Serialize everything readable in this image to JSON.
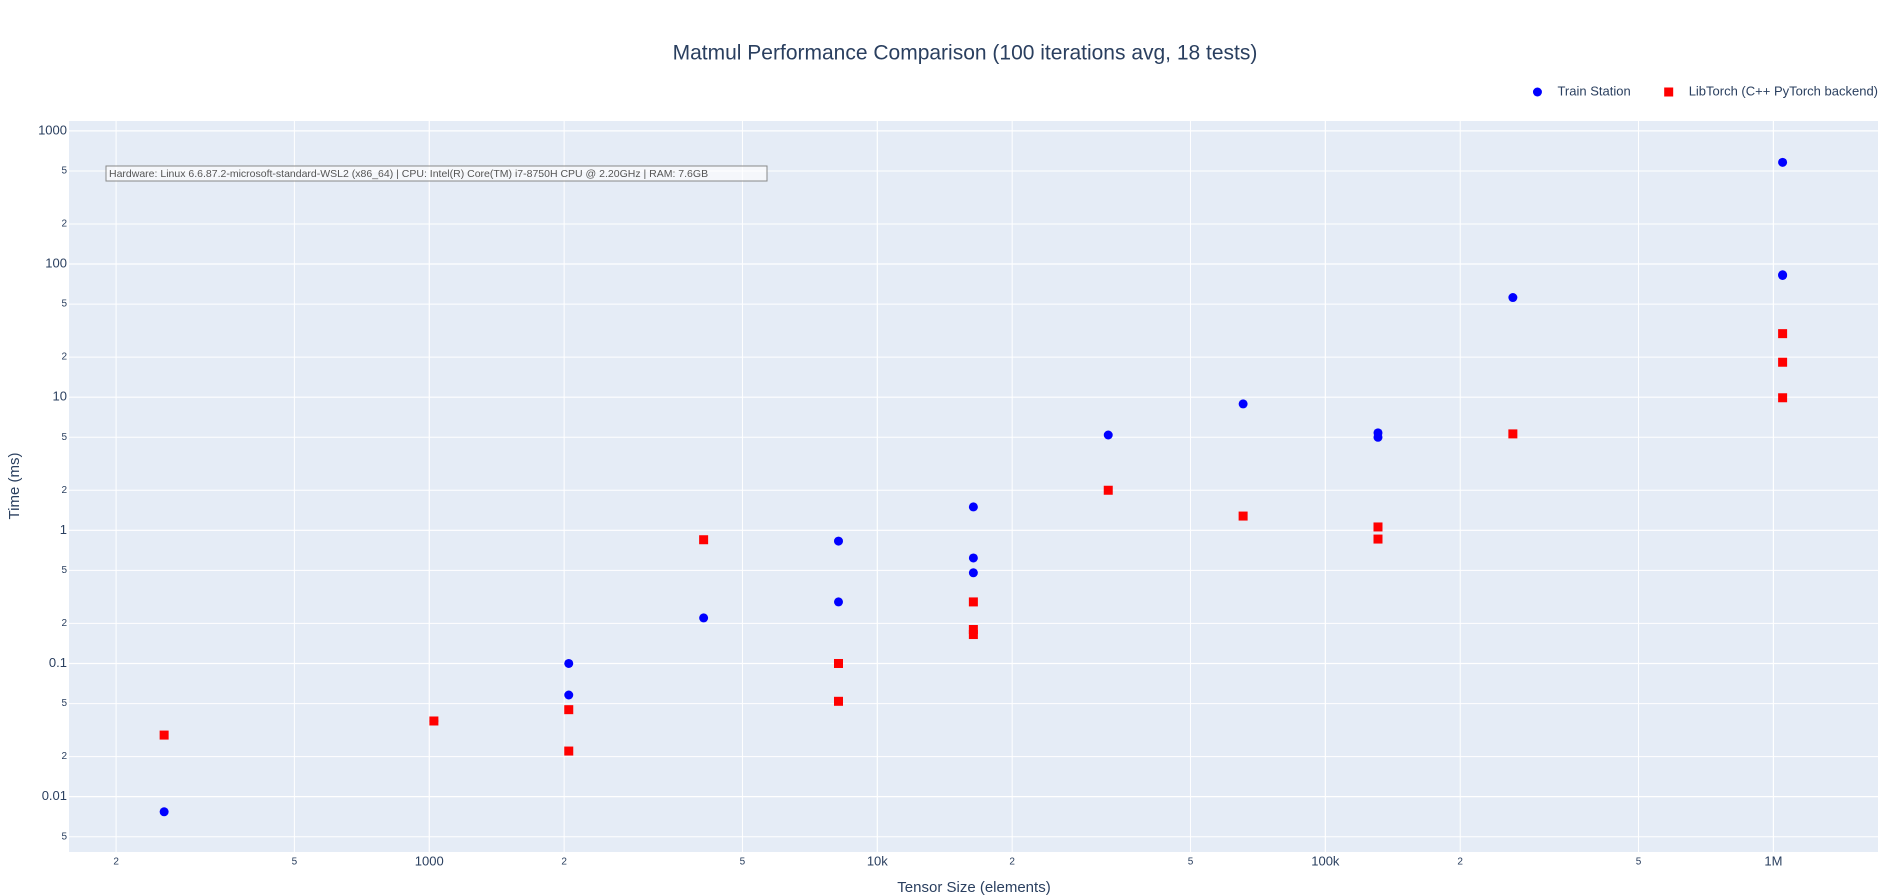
{
  "chart_data": {
    "type": "scatter",
    "title": "Matmul Performance Comparison (100 iterations avg, 18 tests)",
    "x_label": "Tensor Size (elements)",
    "y_label": "Time (ms)",
    "annotation": "Hardware: Linux 6.6.87.2-microsoft-standard-WSL2 (x86_64) | CPU: Intel(R) Core(TM) i7-8750H CPU @ 2.20GHz | RAM: 7.6GB",
    "x_log": true,
    "y_log": true,
    "grid": true,
    "legend_position": "top-right",
    "x": [
      256,
      1024,
      2048,
      2048,
      4096,
      8192,
      8192,
      16384,
      16384,
      16384,
      32768,
      65536,
      131072,
      131072,
      262144,
      1048576,
      1048576,
      1048576
    ],
    "series": [
      {
        "name": "Train Station",
        "color": "#0000ff",
        "marker": "circle",
        "values": [
          0.0077,
          0.037,
          0.1,
          0.058,
          0.22,
          0.83,
          0.29,
          1.5,
          0.62,
          0.48,
          5.2,
          8.9,
          5.4,
          5.0,
          56,
          580,
          83,
          82
        ]
      },
      {
        "name": "LibTorch (C++ PyTorch backend)",
        "color": "#ff0000",
        "marker": "square",
        "values": [
          0.029,
          0.037,
          0.045,
          0.022,
          0.85,
          0.1,
          0.052,
          0.29,
          0.18,
          0.165,
          2.0,
          1.28,
          1.06,
          0.86,
          5.3,
          30,
          18.3,
          9.9
        ]
      }
    ],
    "xlim": [
      157,
      1712000
    ],
    "ylim": [
      0.00384,
      1186
    ],
    "xticks": [
      {
        "value": 200,
        "label": "2"
      },
      {
        "value": 500,
        "label": "5"
      },
      1000,
      {
        "value": 2000,
        "label": "2"
      },
      {
        "value": 5000,
        "label": "5"
      },
      {
        "value": 10000,
        "label": "10k"
      },
      {
        "value": 20000,
        "label": "2"
      },
      {
        "value": 50000,
        "label": "5"
      },
      {
        "value": 100000,
        "label": "100k"
      },
      {
        "value": 200000,
        "label": "2"
      },
      {
        "value": 500000,
        "label": "5"
      },
      {
        "value": 1000000,
        "label": "1M"
      }
    ],
    "yticks": [
      {
        "value": 0.005,
        "label": "5"
      },
      0.01,
      {
        "value": 0.02,
        "label": "2"
      },
      {
        "value": 0.05,
        "label": "5"
      },
      0.1,
      {
        "value": 0.2,
        "label": "2"
      },
      {
        "value": 0.5,
        "label": "5"
      },
      1,
      {
        "value": 2,
        "label": "2"
      },
      {
        "value": 5,
        "label": "5"
      },
      10,
      {
        "value": 20,
        "label": "2"
      },
      {
        "value": 50,
        "label": "5"
      },
      100,
      {
        "value": 200,
        "label": "2"
      },
      {
        "value": 500,
        "label": "5"
      },
      1000
    ]
  }
}
